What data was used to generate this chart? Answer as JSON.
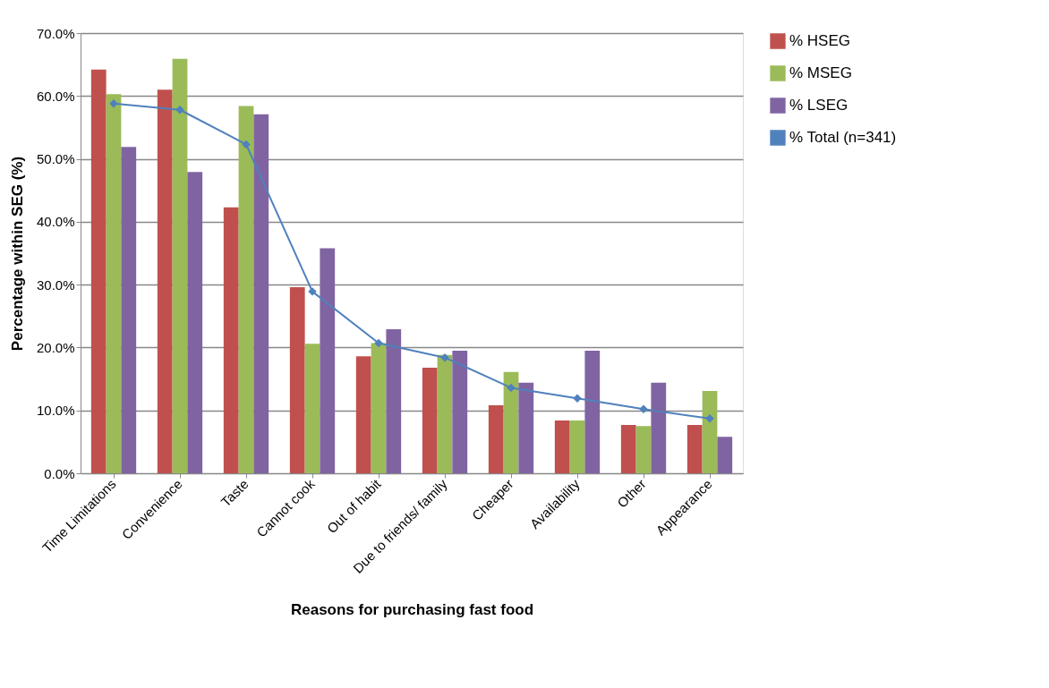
{
  "chart_data": {
    "type": "bar",
    "xlabel": "Reasons for purchasing fast food",
    "ylabel": "Percentage within SEG (%)",
    "categories": [
      "Time Limitations",
      "Convenience",
      "Taste",
      "Cannot cook",
      "Out of habit",
      "Due to friends/ family",
      "Cheaper",
      "Availability",
      "Other",
      "Appearance"
    ],
    "series": [
      {
        "name": "% HSEG",
        "color": "#c0504d",
        "values": [
          64.2,
          61.0,
          42.3,
          29.6,
          18.6,
          16.8,
          10.8,
          8.4,
          7.7,
          7.7
        ]
      },
      {
        "name": "% MSEG",
        "color": "#9bbb59",
        "values": [
          60.3,
          65.9,
          58.4,
          20.6,
          20.7,
          18.8,
          16.1,
          8.4,
          7.5,
          13.1
        ]
      },
      {
        "name": "% LSEG",
        "color": "#8064a2",
        "values": [
          51.9,
          47.9,
          57.1,
          35.8,
          22.9,
          19.5,
          14.4,
          19.5,
          14.4,
          5.8
        ]
      },
      {
        "name": "% Total (n=341)",
        "color": "#4f81bd",
        "type": "line",
        "marker": "diamond",
        "line_style": "solid",
        "values": [
          58.8,
          57.8,
          52.3,
          28.9,
          20.7,
          18.4,
          13.6,
          11.9,
          10.2,
          8.7
        ]
      }
    ],
    "ylim": [
      0,
      70
    ],
    "yticks": [
      {
        "value": 0,
        "label": "0.0%"
      },
      {
        "value": 10,
        "label": "10.0%"
      },
      {
        "value": 20,
        "label": "20.0%"
      },
      {
        "value": 30,
        "label": "30.0%"
      },
      {
        "value": 40,
        "label": "40.0%"
      },
      {
        "value": 50,
        "label": "50.0%"
      },
      {
        "value": 60,
        "label": "60.0%"
      },
      {
        "value": 70,
        "label": "70.0%"
      }
    ],
    "grid": "y",
    "legend": "right"
  }
}
